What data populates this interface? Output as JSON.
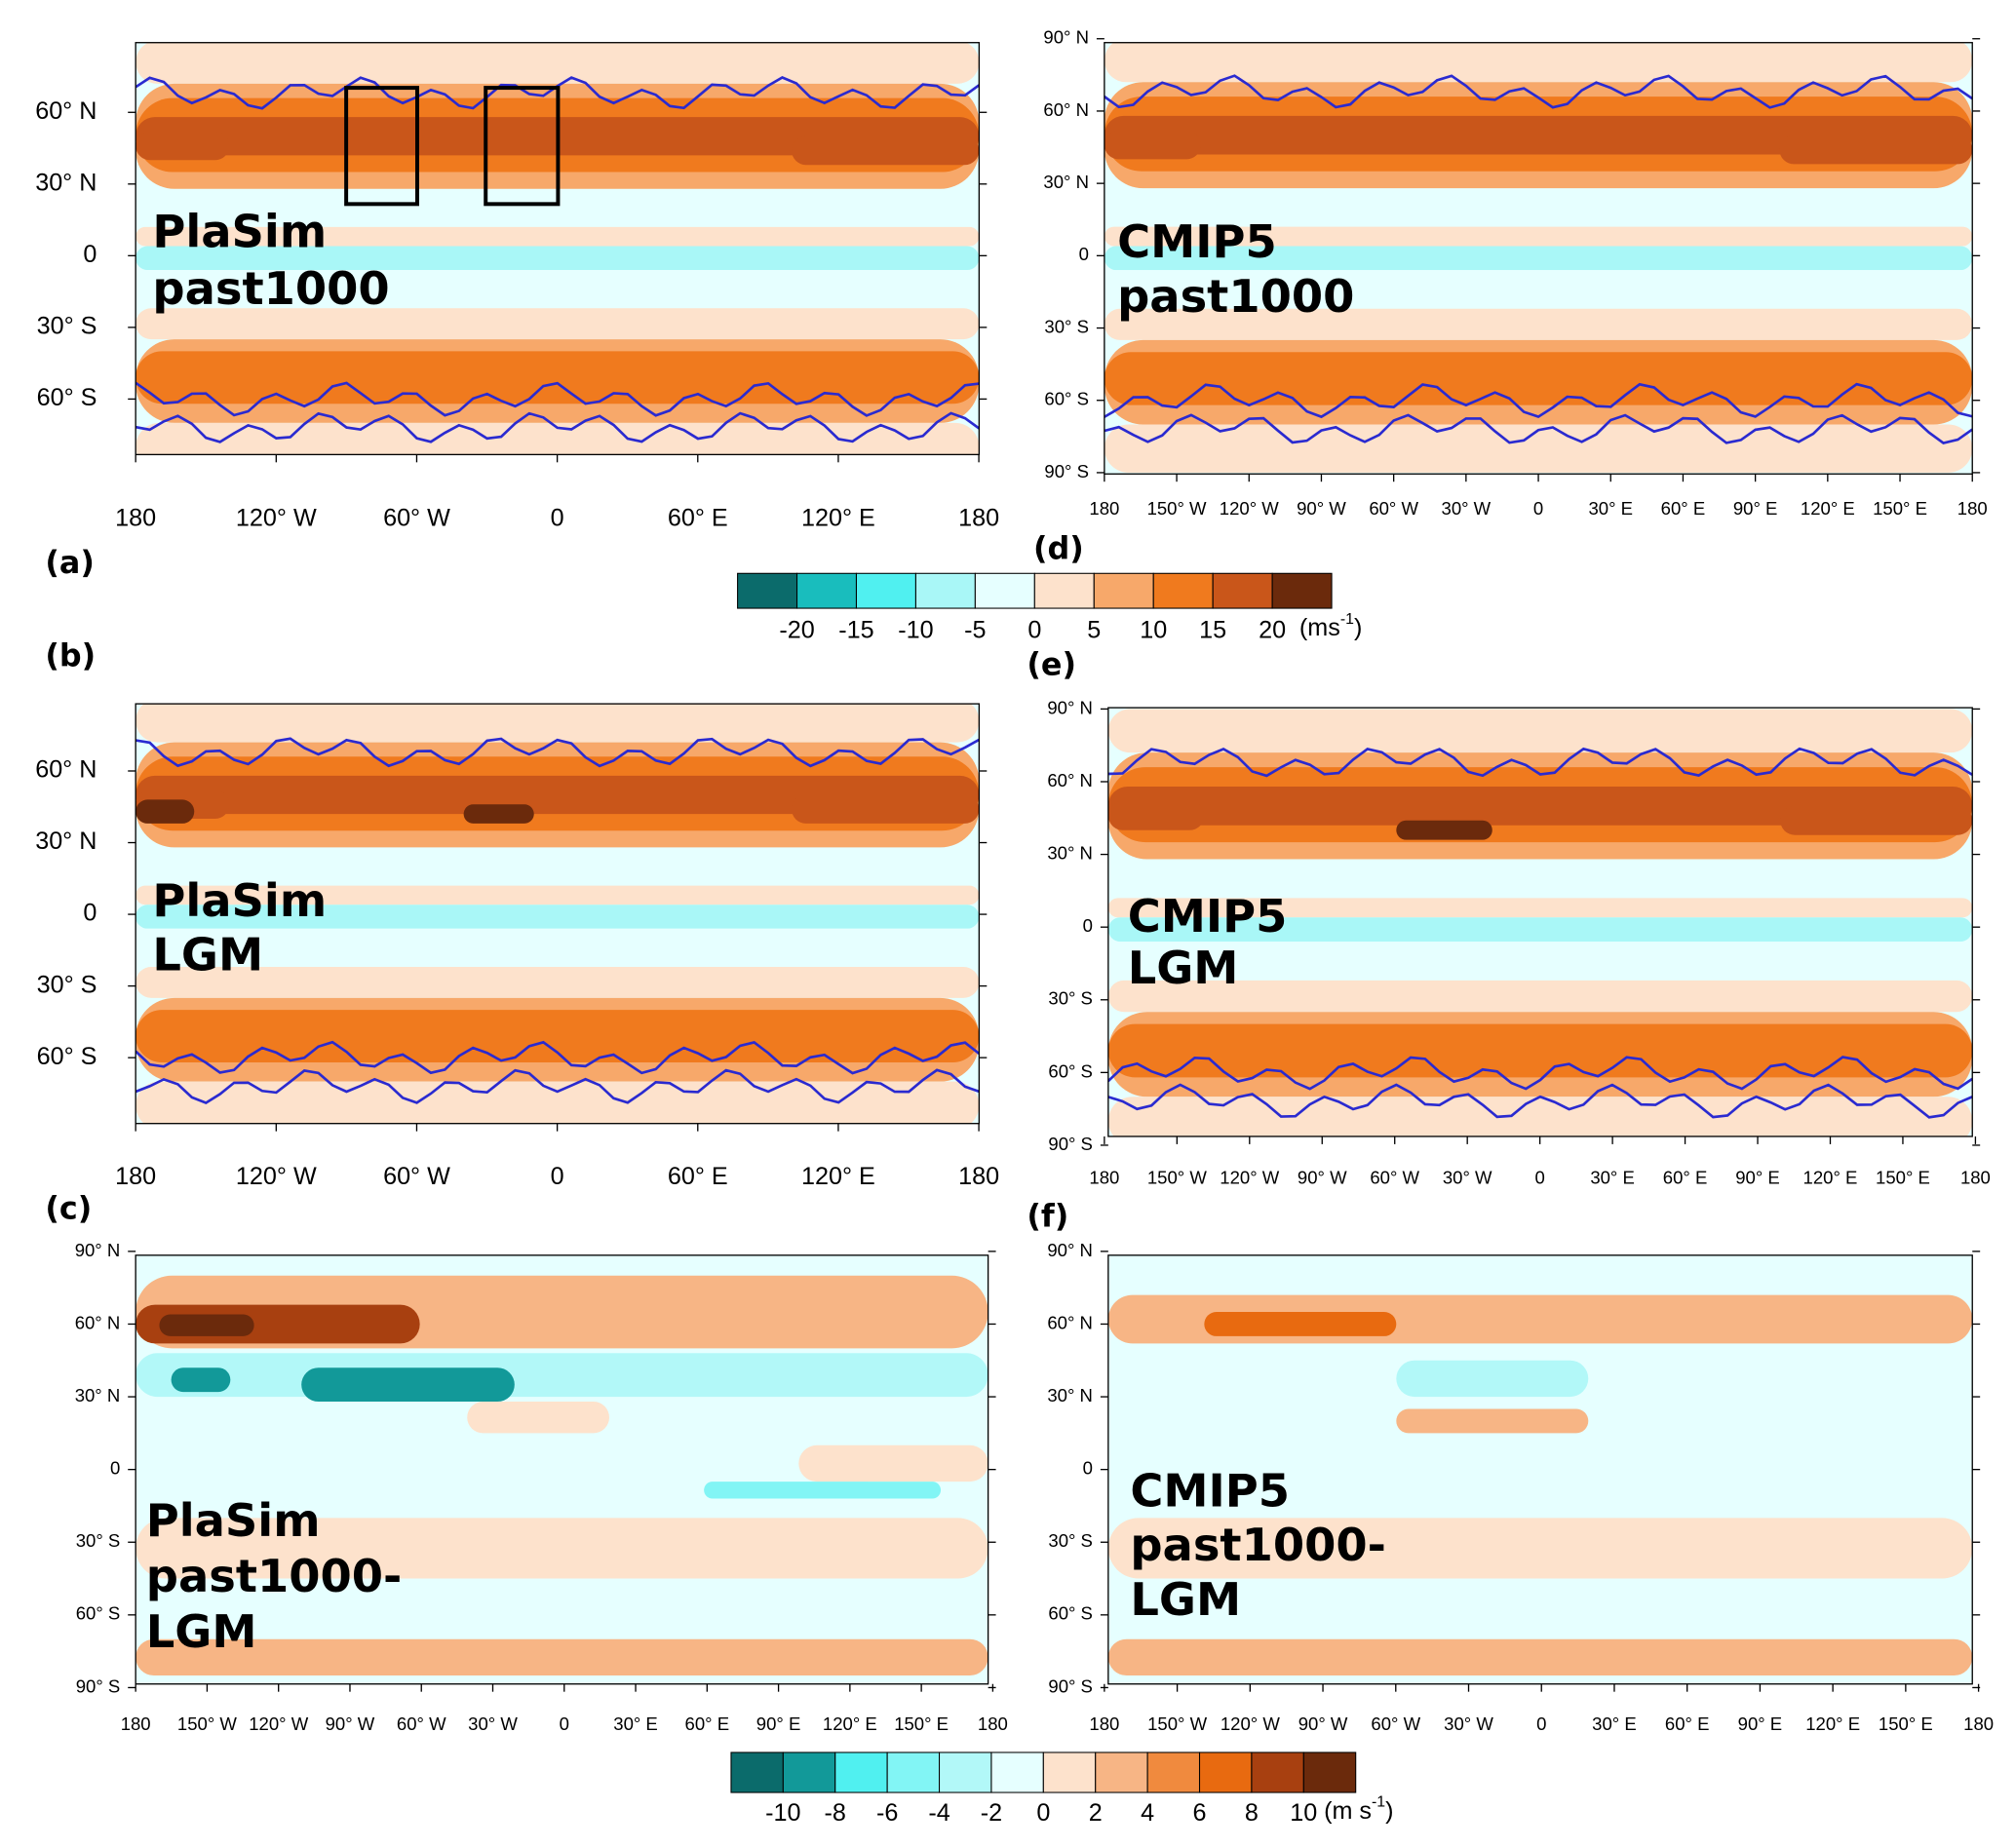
{
  "panels": [
    {
      "label": "(a)",
      "title": [
        "PlaSim",
        "past1000"
      ],
      "lat_ticks": [
        "60° N",
        "30° N",
        "0",
        "30° S",
        "60° S"
      ],
      "lon_ticks": [
        "180",
        "120° W",
        "60° W",
        "0",
        "60° E",
        "120° E",
        "180"
      ]
    },
    {
      "label": "(b)",
      "title": [
        "PlaSim",
        "LGM"
      ],
      "lat_ticks": [
        "60° N",
        "30° N",
        "0",
        "30° S",
        "60° S"
      ],
      "lon_ticks": [
        "180",
        "120° W",
        "60° W",
        "0",
        "60° E",
        "120° E",
        "180"
      ]
    },
    {
      "label": "(c)",
      "title": [
        "PlaSim",
        "past1000-",
        "LGM"
      ],
      "lat_ticks": [
        "90° N",
        "60° N",
        "30° N",
        "0",
        "30° S",
        "60° S",
        "90° S"
      ],
      "lon_ticks": [
        "180",
        "150° W",
        "120° W",
        "90° W",
        "60° W",
        "30° W",
        "0",
        "30° E",
        "60° E",
        "90° E",
        "120° E",
        "150° E",
        "180"
      ]
    },
    {
      "label": "(d)",
      "title": [
        "CMIP5",
        "past1000"
      ],
      "lat_ticks": [
        "90° N",
        "60° N",
        "30° N",
        "0",
        "30° S",
        "60° S",
        "90° S"
      ],
      "lon_ticks": [
        "180",
        "150° W",
        "120° W",
        "90° W",
        "60° W",
        "30° W",
        "0",
        "30° E",
        "60° E",
        "90° E",
        "120° E",
        "150° E",
        "180"
      ]
    },
    {
      "label": "(e)",
      "title": [
        "CMIP5",
        "LGM"
      ],
      "lat_ticks": [
        "90° N",
        "60° N",
        "30° N",
        "0",
        "30° S",
        "60° S",
        "90° S"
      ],
      "lon_ticks": [
        "180",
        "150° W",
        "120° W",
        "90° W",
        "60° W",
        "30° W",
        "0",
        "30° E",
        "60° E",
        "90° E",
        "120° E",
        "150° E",
        "180"
      ]
    },
    {
      "label": "(f)",
      "title": [
        "CMIP5",
        "past1000-",
        "LGM"
      ],
      "lat_ticks": [
        "90° N",
        "60° N",
        "30° N",
        "0",
        "30° S",
        "60° S",
        "90° S"
      ],
      "lon_ticks": [
        "180",
        "150° W",
        "120° W",
        "90° W",
        "60° W",
        "30° W",
        "0",
        "30° E",
        "60° E",
        "90° E",
        "120° E",
        "150° E",
        "180"
      ]
    }
  ],
  "colorbars": [
    {
      "ticks": [
        -20,
        -15,
        -10,
        -5,
        0,
        5,
        10,
        15,
        20
      ],
      "colors": [
        "#0b6b6b",
        "#19bdbd",
        "#50f0f0",
        "#a9f7f7",
        "#e6ffff",
        "#fde2cc",
        "#f7a86a",
        "#f07a1e",
        "#c9561a",
        "#6b2a0c"
      ],
      "unit": "(ms",
      "unit_exponent": "-1",
      "unit_close": ")"
    },
    {
      "ticks": [
        -10,
        -8,
        -6,
        -4,
        -2,
        0,
        2,
        4,
        6,
        8,
        10
      ],
      "colors": [
        "#0b6b6b",
        "#129999",
        "#50f0f0",
        "#82f5f5",
        "#b2f8f8",
        "#e6ffff",
        "#fde2cc",
        "#f7b585",
        "#f08a3e",
        "#e86a10",
        "#a84010",
        "#6b2a0c"
      ],
      "unit": "(m s",
      "unit_exponent": "-1",
      "unit_close": ")"
    }
  ]
}
